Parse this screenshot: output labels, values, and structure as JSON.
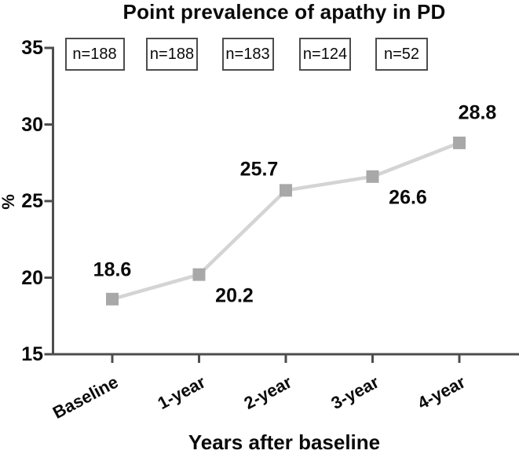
{
  "chart_data": {
    "type": "line",
    "title": "Point prevalence of apathy in PD",
    "xlabel": "Years after baseline",
    "ylabel": "%",
    "categories": [
      "Baseline",
      "1-year",
      "2-year",
      "3-year",
      "4-year"
    ],
    "values": [
      18.6,
      20.2,
      25.7,
      26.6,
      28.8
    ],
    "value_labels": [
      "18.6",
      "20.2",
      "25.7",
      "26.6",
      "28.8"
    ],
    "n_labels": [
      "n=188",
      "n=188",
      "n=183",
      "n=124",
      "n=52"
    ],
    "yticks": [
      15,
      20,
      25,
      30,
      35
    ],
    "ylim": [
      15,
      35
    ],
    "grid": false,
    "legend": false,
    "marker": "square",
    "label_placement": [
      "above",
      "below-right",
      "above-left",
      "below-right",
      "above-right"
    ],
    "colors": {
      "line": "#d4d4d4",
      "marker": "#a8a8a8",
      "axis": "#4d4d4d",
      "text": "#0a0a0a"
    }
  }
}
